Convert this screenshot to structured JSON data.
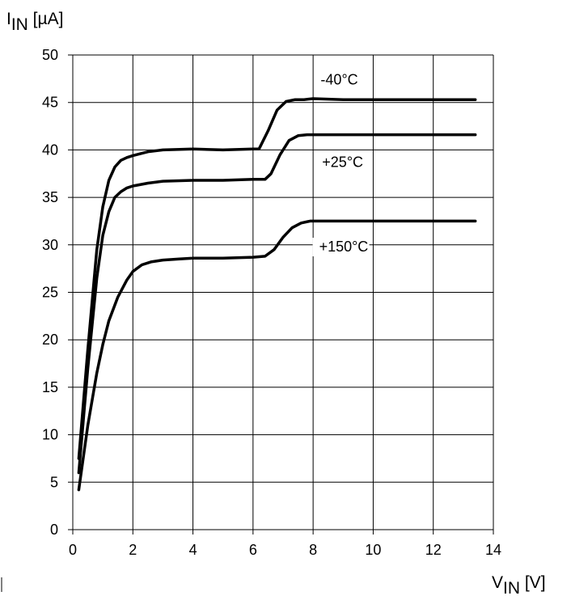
{
  "chart_data": {
    "type": "line",
    "ylabel": {
      "main": "I",
      "sub": "IN",
      "unit": " [µA]"
    },
    "xlabel": {
      "main": "V",
      "sub": "IN",
      "unit": " [V]"
    },
    "xlim": [
      0,
      14
    ],
    "ylim": [
      0,
      50
    ],
    "x_ticks": [
      0,
      2,
      4,
      6,
      8,
      10,
      12,
      14
    ],
    "y_ticks": [
      0,
      5,
      10,
      15,
      20,
      25,
      30,
      35,
      40,
      45,
      50
    ],
    "grid": true,
    "line_color": "#000000",
    "series": [
      {
        "name": "-40°C",
        "x": [
          0.2,
          0.5,
          0.8,
          1.0,
          1.2,
          1.4,
          1.6,
          1.8,
          2.0,
          2.5,
          3.0,
          4.0,
          5.0,
          6.0,
          6.2,
          6.5,
          6.8,
          7.1,
          7.4,
          7.7,
          8.0,
          9.0,
          10.0,
          11.0,
          12.0,
          13.4
        ],
        "y": [
          7.5,
          19.0,
          29.5,
          34.0,
          36.8,
          38.2,
          38.9,
          39.2,
          39.4,
          39.8,
          40.0,
          40.1,
          40.0,
          40.1,
          40.1,
          42.0,
          44.2,
          45.1,
          45.3,
          45.3,
          45.4,
          45.3,
          45.3,
          45.3,
          45.3,
          45.3
        ]
      },
      {
        "name": "+25°C",
        "x": [
          0.2,
          0.5,
          0.8,
          1.0,
          1.2,
          1.4,
          1.6,
          1.8,
          2.0,
          2.5,
          3.0,
          4.0,
          5.0,
          6.0,
          6.4,
          6.6,
          6.9,
          7.2,
          7.5,
          7.8,
          8.0,
          9.0,
          10.0,
          11.0,
          12.0,
          13.4
        ],
        "y": [
          6.0,
          17.0,
          26.5,
          31.0,
          33.5,
          35.0,
          35.6,
          36.0,
          36.2,
          36.5,
          36.7,
          36.8,
          36.8,
          36.9,
          36.9,
          37.5,
          39.5,
          41.0,
          41.5,
          41.6,
          41.6,
          41.6,
          41.6,
          41.6,
          41.6,
          41.6
        ]
      },
      {
        "name": "+150°C",
        "x": [
          0.2,
          0.5,
          0.8,
          1.0,
          1.2,
          1.5,
          1.8,
          2.0,
          2.3,
          2.6,
          3.0,
          3.5,
          4.0,
          5.0,
          6.0,
          6.4,
          6.7,
          7.0,
          7.3,
          7.6,
          7.9,
          8.2,
          9.0,
          10.0,
          11.0,
          12.0,
          13.4
        ],
        "y": [
          4.2,
          11.0,
          16.5,
          19.5,
          22.0,
          24.5,
          26.3,
          27.2,
          27.9,
          28.2,
          28.4,
          28.5,
          28.6,
          28.6,
          28.7,
          28.8,
          29.5,
          30.8,
          31.8,
          32.3,
          32.5,
          32.5,
          32.5,
          32.5,
          32.5,
          32.5,
          32.5
        ]
      }
    ]
  }
}
